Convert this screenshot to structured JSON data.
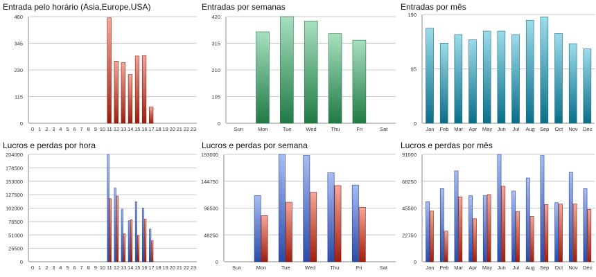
{
  "chart_data": [
    {
      "type": "bar",
      "title": "Entrada pelo horário (Asia,Europe,USA)",
      "color_theme": "red",
      "categories": [
        "0",
        "1",
        "2",
        "3",
        "4",
        "5",
        "6",
        "7",
        "8",
        "9",
        "10",
        "11",
        "12",
        "13",
        "14",
        "15",
        "16",
        "17",
        "18",
        "19",
        "20",
        "21",
        "22",
        "23"
      ],
      "series": [
        {
          "values": [
            0,
            0,
            0,
            0,
            0,
            0,
            0,
            0,
            0,
            0,
            0,
            455,
            268,
            262,
            210,
            290,
            292,
            70,
            0,
            0,
            0,
            0,
            0,
            0
          ]
        }
      ],
      "yticks": [
        "0",
        "115",
        "230",
        "345",
        "460"
      ],
      "ylim": [
        0,
        460
      ],
      "grid": true
    },
    {
      "type": "bar",
      "title": "Entradas por semanas",
      "color_theme": "green",
      "categories": [
        "Sun",
        "Mon",
        "Tue",
        "Wed",
        "Thu",
        "Fri",
        "Sat"
      ],
      "series": [
        {
          "values": [
            0,
            360,
            420,
            403,
            353,
            327,
            0
          ]
        }
      ],
      "yticks": [
        "0",
        "105",
        "210",
        "315",
        "420"
      ],
      "ylim": [
        0,
        420
      ],
      "grid": true
    },
    {
      "type": "bar",
      "title": "Entradas por mês",
      "color_theme": "teal",
      "categories": [
        "Jan",
        "Feb",
        "Mar",
        "Apr",
        "May",
        "Jun",
        "Jul",
        "Aug",
        "Sep",
        "Oct",
        "Nov",
        "Dec"
      ],
      "series": [
        {
          "values": [
            166,
            140,
            155,
            146,
            161,
            161,
            155,
            180,
            186,
            157,
            139,
            130
          ]
        }
      ],
      "yticks": [
        "0",
        "95",
        "190"
      ],
      "ylim": [
        0,
        190
      ],
      "grid": true
    },
    {
      "type": "bar",
      "title": "Lucros e perdas por hora",
      "color_theme": "blue-red",
      "categories": [
        "0",
        "1",
        "2",
        "3",
        "4",
        "5",
        "6",
        "7",
        "8",
        "9",
        "10",
        "11",
        "12",
        "13",
        "14",
        "15",
        "16",
        "17",
        "18",
        "19",
        "20",
        "21",
        "22",
        "23"
      ],
      "series": [
        {
          "values": [
            0,
            0,
            0,
            0,
            0,
            0,
            0,
            0,
            0,
            0,
            0,
            204000,
            140000,
            100000,
            78000,
            114000,
            102000,
            62000,
            0,
            0,
            0,
            0,
            0,
            0
          ]
        },
        {
          "values": [
            0,
            0,
            0,
            0,
            0,
            0,
            0,
            0,
            0,
            0,
            0,
            120000,
            125000,
            53000,
            80000,
            50000,
            81000,
            40000,
            0,
            0,
            0,
            0,
            0,
            0
          ]
        }
      ],
      "yticks": [
        "0",
        "25500",
        "51000",
        "76500",
        "102000",
        "127500",
        "153000",
        "178500",
        "204000"
      ],
      "ylim": [
        0,
        204000
      ],
      "grid": true
    },
    {
      "type": "bar",
      "title": "Lucros e perdas por semana",
      "color_theme": "blue-red",
      "categories": [
        "Sun",
        "Mon",
        "Tue",
        "Wed",
        "Thu",
        "Fri",
        "Sat"
      ],
      "series": [
        {
          "values": [
            0,
            119000,
            193000,
            191000,
            160000,
            138000,
            0
          ]
        },
        {
          "values": [
            0,
            83000,
            107000,
            125000,
            137000,
            98000,
            0
          ]
        }
      ],
      "yticks": [
        "0",
        "48250",
        "96500",
        "144750",
        "193000"
      ],
      "ylim": [
        0,
        193000
      ],
      "grid": true
    },
    {
      "type": "bar",
      "title": "Lucros e perdas por mês",
      "color_theme": "blue-red",
      "categories": [
        "Jan",
        "Feb",
        "Mar",
        "Apr",
        "May",
        "Jun",
        "Jul",
        "Aug",
        "Sep",
        "Oct",
        "Nov",
        "Dec"
      ],
      "series": [
        {
          "values": [
            51000,
            62000,
            77000,
            56000,
            56000,
            91000,
            60000,
            71000,
            90000,
            50000,
            76000,
            62000
          ]
        },
        {
          "values": [
            43000,
            26000,
            55000,
            36500,
            57000,
            64000,
            42500,
            38500,
            48500,
            49000,
            49000,
            44500
          ]
        }
      ],
      "yticks": [
        "0",
        "22750",
        "45500",
        "68250",
        "91000"
      ],
      "ylim": [
        0,
        91000
      ],
      "grid": true
    }
  ]
}
